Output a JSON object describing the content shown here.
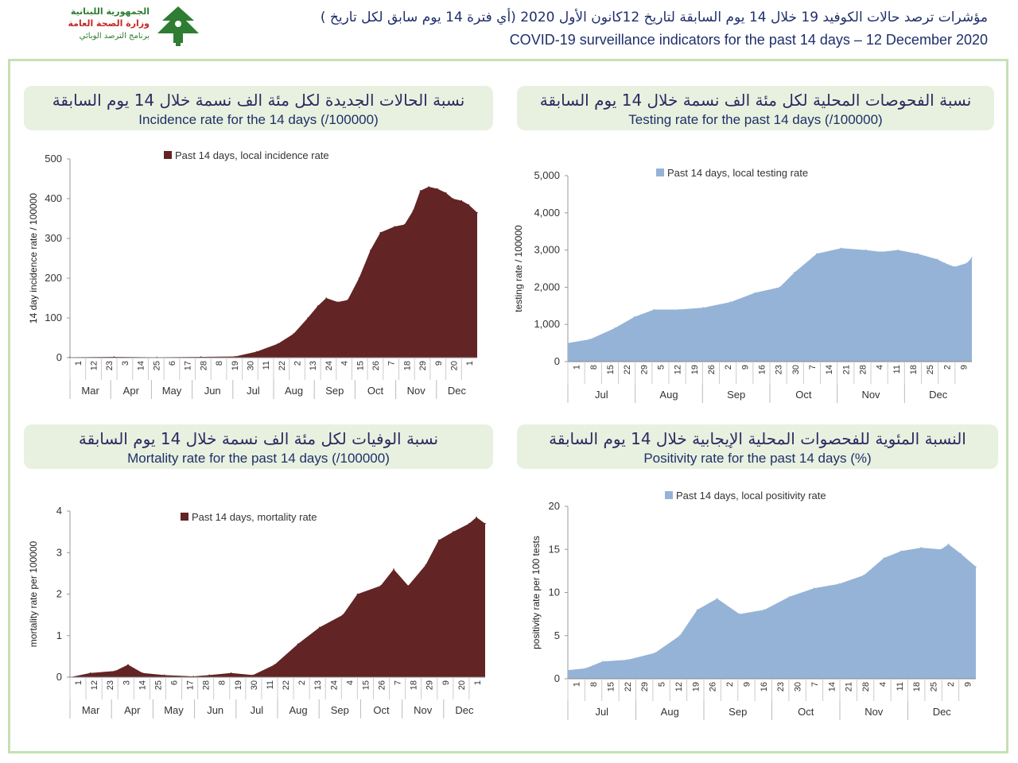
{
  "header": {
    "logo_ar_line1": "الجمهورية اللبنانية",
    "logo_ar_line2": "وزارة الصحة العامة",
    "logo_ar_line3": "برنامج الترصد الوبائي",
    "title_ar": "مؤشرات ترصد حالات الكوفيد 19 خلال 14 يوم السابقة لتاريخ 12كانون الأول 2020 (أي فترة 14 يوم سابق لكل تاريخ )",
    "title_en": "COVID-19 surveillance indicators for the past 14 days – 12 December 2020"
  },
  "colors": {
    "maroon": "#622424",
    "blue": "#95b3d7",
    "frame": "#c6e0b4",
    "title_bg": "#e8f1df"
  },
  "panels": {
    "incidence": {
      "title_ar": "نسبة الحالات الجديدة لكل مئة الف نسمة خلال 14 يوم السابقة",
      "title_en": "Incidence rate for the 14 days  (/100000)"
    },
    "testing": {
      "title_ar": "نسبة الفحوصات المحلية لكل مئة الف نسمة خلال 14 يوم السابقة",
      "title_en": "Testing rate for the past 14 days (/100000)"
    },
    "mortality": {
      "title_ar": "نسبة الوفيات لكل مئة الف نسمة خلال 14 يوم السابقة",
      "title_en": "Mortality rate for the past 14 days (/100000)"
    },
    "positivity": {
      "title_ar": "النسبة المئوية للفحصوات المحلية الإيجابية خلال 14 يوم السابقة",
      "title_en": "Positivity rate for the past 14 days (%)"
    }
  },
  "chart_data": [
    {
      "id": "incidence",
      "type": "area",
      "title": "Incidence rate for the 14 days  (/100000)",
      "legend": "Past 14 days, local incidence rate",
      "ylabel": "14 day incidence rate / 100000",
      "ylim": [
        0,
        500
      ],
      "yticks": [
        "0",
        "100",
        "200",
        "300",
        "400",
        "500"
      ],
      "color": "#622424",
      "x_tick_labels": [
        "1",
        "12",
        "23",
        "3",
        "14",
        "25",
        "6",
        "17",
        "28",
        "8",
        "19",
        "30",
        "11",
        "22",
        "2",
        "13",
        "24",
        "4",
        "15",
        "26",
        "7",
        "18",
        "29",
        "9",
        "20",
        "1"
      ],
      "months": [
        "Mar",
        "Apr",
        "May",
        "Jun",
        "Jul",
        "Aug",
        "Sep",
        "Oct",
        "Nov",
        "Dec"
      ],
      "x": [
        "2020-03-01",
        "2020-04-01",
        "2020-05-01",
        "2020-06-01",
        "2020-06-25",
        "2020-07-10",
        "2020-07-25",
        "2020-08-05",
        "2020-08-15",
        "2020-08-22",
        "2020-08-28",
        "2020-09-05",
        "2020-09-12",
        "2020-09-20",
        "2020-09-28",
        "2020-10-05",
        "2020-10-15",
        "2020-10-22",
        "2020-10-28",
        "2020-11-02",
        "2020-11-08",
        "2020-11-14",
        "2020-11-20",
        "2020-11-25",
        "2020-12-01",
        "2020-12-06",
        "2020-12-12"
      ],
      "values": [
        1,
        2,
        1,
        2,
        3,
        15,
        35,
        60,
        100,
        130,
        150,
        140,
        145,
        200,
        270,
        315,
        330,
        335,
        370,
        420,
        430,
        425,
        415,
        400,
        395,
        385,
        365
      ]
    },
    {
      "id": "testing",
      "type": "area",
      "title": "Testing rate for the past 14 days (/100000)",
      "legend": "Past 14 days, local testing rate",
      "ylabel": "testing rate / 100000",
      "ylim": [
        0,
        5000
      ],
      "yticks": [
        "0",
        "1,000",
        "2,000",
        "3,000",
        "4,000",
        "5,000"
      ],
      "color": "#95b3d7",
      "x_tick_labels": [
        "1",
        "8",
        "15",
        "22",
        "29",
        "5",
        "12",
        "19",
        "26",
        "2",
        "9",
        "16",
        "23",
        "30",
        "7",
        "14",
        "21",
        "28",
        "4",
        "11",
        "18",
        "25",
        "2",
        "9"
      ],
      "months": [
        "Jul",
        "Aug",
        "Sep",
        "Oct",
        "Nov",
        "Dec"
      ],
      "x": [
        "2020-07-01",
        "2020-07-10",
        "2020-07-20",
        "2020-07-28",
        "2020-08-05",
        "2020-08-15",
        "2020-08-25",
        "2020-09-05",
        "2020-09-15",
        "2020-09-25",
        "2020-10-01",
        "2020-10-10",
        "2020-10-20",
        "2020-10-30",
        "2020-11-05",
        "2020-11-12",
        "2020-11-20",
        "2020-11-28",
        "2020-12-01",
        "2020-12-05",
        "2020-12-10",
        "2020-12-12"
      ],
      "values": [
        500,
        600,
        900,
        1200,
        1400,
        1400,
        1450,
        1600,
        1850,
        2000,
        2400,
        2900,
        3050,
        3000,
        2950,
        3000,
        2900,
        2750,
        2650,
        2550,
        2650,
        2800
      ]
    },
    {
      "id": "mortality",
      "type": "area",
      "title": "Mortality rate for the past 14 days (/100000)",
      "legend": "Past 14 days, mortality rate",
      "ylabel": "mortality rate per 100000",
      "ylim": [
        0,
        4
      ],
      "yticks": [
        "0",
        "1",
        "2",
        "3",
        "4"
      ],
      "color": "#622424",
      "x_tick_labels": [
        "1",
        "12",
        "23",
        "3",
        "14",
        "25",
        "6",
        "17",
        "28",
        "8",
        "19",
        "30",
        "11",
        "22",
        "2",
        "13",
        "24",
        "4",
        "15",
        "26",
        "7",
        "18",
        "29",
        "9",
        "20",
        "1"
      ],
      "months": [
        "Mar",
        "Apr",
        "May",
        "Jun",
        "Jul",
        "Aug",
        "Sep",
        "Oct",
        "Nov",
        "Dec"
      ],
      "x": [
        "2020-03-01",
        "2020-03-15",
        "2020-04-01",
        "2020-04-10",
        "2020-04-20",
        "2020-05-05",
        "2020-05-25",
        "2020-06-05",
        "2020-06-20",
        "2020-07-05",
        "2020-07-20",
        "2020-08-05",
        "2020-08-20",
        "2020-09-05",
        "2020-09-15",
        "2020-10-01",
        "2020-10-10",
        "2020-10-20",
        "2020-11-01",
        "2020-11-10",
        "2020-11-20",
        "2020-12-01",
        "2020-12-06",
        "2020-12-12"
      ],
      "values": [
        0,
        0.1,
        0.15,
        0.3,
        0.1,
        0.05,
        0.02,
        0.05,
        0.1,
        0.05,
        0.3,
        0.8,
        1.2,
        1.5,
        2.0,
        2.2,
        2.6,
        2.2,
        2.7,
        3.3,
        3.5,
        3.7,
        3.85,
        3.7
      ]
    },
    {
      "id": "positivity",
      "type": "area",
      "title": "Positivity rate for the past 14 days (%)",
      "legend": "Past 14 days, local positivity rate",
      "ylabel": "positivity rate per 100 tests",
      "ylim": [
        0,
        20
      ],
      "yticks": [
        "0",
        "5",
        "10",
        "15",
        "20"
      ],
      "color": "#95b3d7",
      "x_tick_labels": [
        "1",
        "8",
        "15",
        "22",
        "29",
        "5",
        "12",
        "19",
        "26",
        "2",
        "9",
        "16",
        "23",
        "30",
        "7",
        "14",
        "21",
        "28",
        "4",
        "11",
        "18",
        "25",
        "2",
        "9"
      ],
      "months": [
        "Jul",
        "Aug",
        "Sep",
        "Oct",
        "Nov",
        "Dec"
      ],
      "x": [
        "2020-07-01",
        "2020-07-08",
        "2020-07-15",
        "2020-07-25",
        "2020-08-05",
        "2020-08-15",
        "2020-08-22",
        "2020-08-30",
        "2020-09-08",
        "2020-09-18",
        "2020-09-28",
        "2020-10-08",
        "2020-10-18",
        "2020-10-28",
        "2020-11-05",
        "2020-11-12",
        "2020-11-20",
        "2020-11-28",
        "2020-12-01",
        "2020-12-06",
        "2020-12-12"
      ],
      "values": [
        1.0,
        1.2,
        2.0,
        2.2,
        3.0,
        5.0,
        8.0,
        9.3,
        7.5,
        8.0,
        9.5,
        10.5,
        11.0,
        12.0,
        14.0,
        14.8,
        15.2,
        15.0,
        15.6,
        14.5,
        13.0
      ]
    }
  ]
}
